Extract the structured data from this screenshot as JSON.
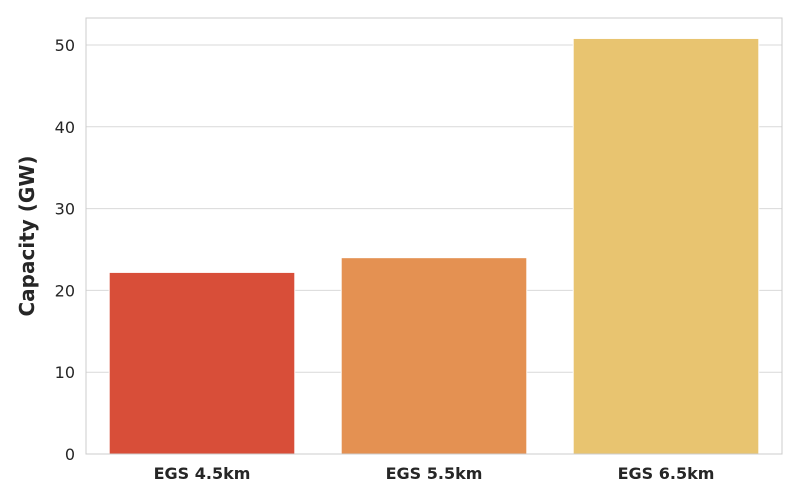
{
  "chart_data": {
    "type": "bar",
    "title": "",
    "xlabel": "",
    "ylabel": "Capacity (GW)",
    "categories": [
      "EGS 4.5km",
      "EGS 5.5km",
      "EGS 6.5km"
    ],
    "values": [
      22.2,
      24.0,
      50.8
    ],
    "colors": [
      "#d84e39",
      "#e49152",
      "#e8c470"
    ],
    "ylim": [
      0,
      53.3
    ],
    "yticks": [
      0,
      10,
      20,
      30,
      40,
      50
    ],
    "grid": "horizontal",
    "legend": "none"
  }
}
